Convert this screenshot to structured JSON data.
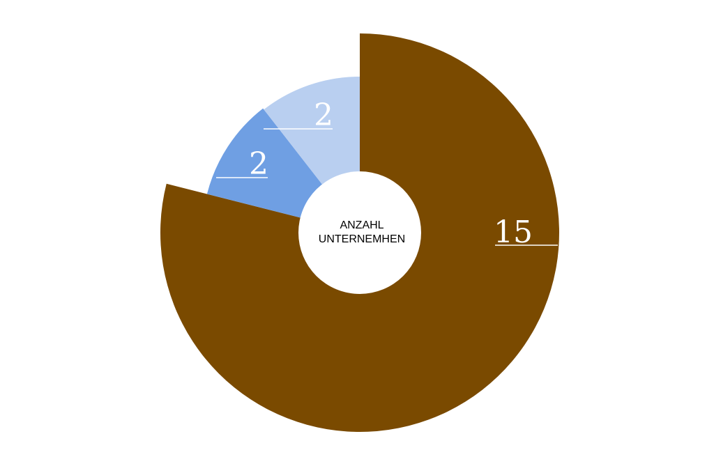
{
  "chart_data": {
    "type": "pie",
    "center_label": [
      "ANZAHL",
      "UNTERNEMHEN"
    ],
    "slices": [
      {
        "value": 15,
        "label": "15",
        "color": "#7A4A00"
      },
      {
        "value": 2,
        "label": "2",
        "color": "#6F9FE3"
      },
      {
        "value": 2,
        "label": "2",
        "color": "#B9CFF0"
      }
    ]
  }
}
